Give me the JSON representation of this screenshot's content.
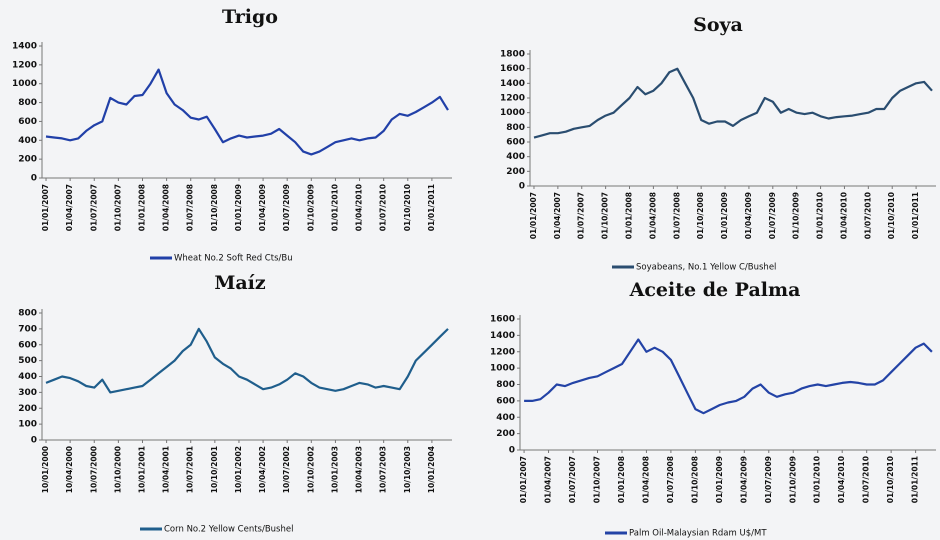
{
  "chart_data": [
    {
      "type": "line",
      "title": "Trigo",
      "categories": [
        "01/01/2007",
        null,
        null,
        "01/04/2007",
        null,
        null,
        "01/07/2007",
        null,
        null,
        "01/10/2007",
        null,
        null,
        "01/01/2008",
        null,
        null,
        "01/04/2008",
        null,
        null,
        "01/07/2008",
        null,
        null,
        "01/10/2008",
        null,
        null,
        "01/01/2009",
        null,
        null,
        "01/04/2009",
        null,
        null,
        "01/07/2009",
        null,
        null,
        "01/10/2009",
        null,
        null,
        "01/01/2010",
        null,
        null,
        "01/04/2010",
        null,
        null,
        "01/07/2010",
        null,
        null,
        "01/10/2010",
        null,
        null,
        "01/01/2011",
        null,
        null
      ],
      "series": [
        {
          "name": "Wheat No.2 Soft Red Cts/Bu",
          "color": "#2140a8",
          "values": [
            440,
            430,
            420,
            400,
            420,
            500,
            560,
            600,
            850,
            800,
            780,
            870,
            880,
            1000,
            1150,
            900,
            780,
            720,
            640,
            620,
            650,
            520,
            380,
            420,
            450,
            430,
            440,
            450,
            470,
            520,
            450,
            380,
            280,
            250,
            280,
            330,
            380,
            400,
            420,
            400,
            420,
            430,
            500,
            620,
            680,
            660,
            700,
            750,
            800,
            860,
            720
          ]
        }
      ],
      "ylim": [
        0,
        1400
      ],
      "yticks": [
        0,
        200,
        400,
        600,
        800,
        1000,
        1200,
        1400
      ],
      "grid": false
    },
    {
      "type": "line",
      "title": "Soya",
      "categories": [
        "01/01/2007",
        null,
        null,
        "01/04/2007",
        null,
        null,
        "01/07/2007",
        null,
        null,
        "01/10/2007",
        null,
        null,
        "01/01/2008",
        null,
        null,
        "01/04/2008",
        null,
        null,
        "01/07/2008",
        null,
        null,
        "01/10/2008",
        null,
        null,
        "01/01/2009",
        null,
        null,
        "01/04/2009",
        null,
        null,
        "01/07/2009",
        null,
        null,
        "01/10/2009",
        null,
        null,
        "01/01/2010",
        null,
        null,
        "01/04/2010",
        null,
        null,
        "01/07/2010",
        null,
        null,
        "01/10/2010",
        null,
        null,
        "01/01/2011",
        null,
        null
      ],
      "series": [
        {
          "name": "Soyabeans, No.1 Yellow C/Bushel",
          "color": "#2a4d70",
          "values": [
            660,
            690,
            720,
            720,
            740,
            780,
            800,
            820,
            900,
            960,
            1000,
            1100,
            1200,
            1350,
            1250,
            1300,
            1400,
            1550,
            1600,
            1400,
            1200,
            900,
            850,
            880,
            880,
            820,
            900,
            950,
            1000,
            1200,
            1150,
            1000,
            1050,
            1000,
            980,
            1000,
            950,
            920,
            940,
            950,
            960,
            980,
            1000,
            1050,
            1050,
            1200,
            1300,
            1350,
            1400,
            1420,
            1300
          ]
        }
      ],
      "ylim": [
        0,
        1800
      ],
      "yticks": [
        0,
        200,
        400,
        600,
        800,
        1000,
        1200,
        1400,
        1600,
        1800
      ],
      "grid": false
    },
    {
      "type": "line",
      "title": "Maíz",
      "categories": [
        "10/01/2000",
        null,
        null,
        "10/04/2000",
        null,
        null,
        "10/07/2000",
        null,
        null,
        "10/10/2000",
        null,
        null,
        "10/01/2001",
        null,
        null,
        "10/04/2001",
        null,
        null,
        "10/07/2001",
        null,
        null,
        "10/10/2001",
        null,
        null,
        "10/01/2002",
        null,
        null,
        "10/04/2002",
        null,
        null,
        "10/07/2002",
        null,
        null,
        "10/10/2002",
        null,
        null,
        "10/01/2003",
        null,
        null,
        "10/04/2003",
        null,
        null,
        "10/07/2003",
        null,
        null,
        "10/10/2003",
        null,
        null,
        "10/01/2004",
        null,
        null
      ],
      "series": [
        {
          "name": "Corn No.2 Yellow Cents/Bushel",
          "color": "#1f5e8c",
          "values": [
            360,
            380,
            400,
            390,
            370,
            340,
            330,
            380,
            300,
            310,
            320,
            330,
            340,
            380,
            420,
            460,
            500,
            560,
            600,
            700,
            620,
            520,
            480,
            450,
            400,
            380,
            350,
            320,
            330,
            350,
            380,
            420,
            400,
            360,
            330,
            320,
            310,
            320,
            340,
            360,
            350,
            330,
            340,
            330,
            320,
            400,
            500,
            550,
            600,
            650,
            700
          ]
        }
      ],
      "ylim": [
        0,
        800
      ],
      "yticks": [
        0,
        100,
        200,
        300,
        400,
        500,
        600,
        700,
        800
      ],
      "grid": false
    },
    {
      "type": "line",
      "title": "Aceite de Palma",
      "categories": [
        "01/01/2007",
        null,
        null,
        "01/04/2007",
        null,
        null,
        "01/07/2007",
        null,
        null,
        "01/10/2007",
        null,
        null,
        "01/01/2008",
        null,
        null,
        "01/04/2008",
        null,
        null,
        "01/07/2008",
        null,
        null,
        "01/10/2008",
        null,
        null,
        "01/01/2009",
        null,
        null,
        "01/04/2009",
        null,
        null,
        "01/07/2009",
        null,
        null,
        "01/10/2009",
        null,
        null,
        "01/01/2010",
        null,
        null,
        "01/04/2010",
        null,
        null,
        "01/07/2010",
        null,
        null,
        "01/10/2010",
        null,
        null,
        "01/01/2011",
        null,
        null
      ],
      "series": [
        {
          "name": "Palm Oil-Malaysian Rdam U$/MT",
          "color": "#2343a6",
          "values": [
            600,
            600,
            620,
            700,
            800,
            780,
            820,
            850,
            880,
            900,
            950,
            1000,
            1050,
            1200,
            1350,
            1200,
            1250,
            1200,
            1100,
            900,
            700,
            500,
            450,
            500,
            550,
            580,
            600,
            650,
            750,
            800,
            700,
            650,
            680,
            700,
            750,
            780,
            800,
            780,
            800,
            820,
            830,
            820,
            800,
            800,
            850,
            950,
            1050,
            1150,
            1250,
            1300,
            1200
          ]
        }
      ],
      "ylim": [
        0,
        1600
      ],
      "yticks": [
        0,
        200,
        400,
        600,
        800,
        1000,
        1200,
        1400,
        1600
      ],
      "grid": false
    }
  ]
}
